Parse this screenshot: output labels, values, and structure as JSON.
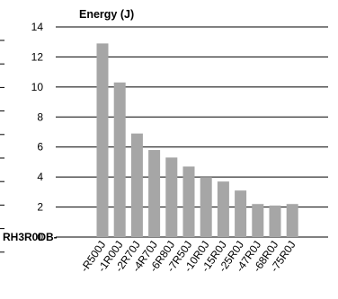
{
  "chart_data": {
    "type": "bar",
    "title": "Energy (J)",
    "category_prefix": "RH3R0DB-",
    "categories": [
      "-R500J",
      "-1R00J",
      "-2R70J",
      "-4R70J",
      "-6R80J",
      "-7R50J",
      "-10R0J",
      "-15R0J",
      "-25R0J",
      "-47R0J",
      "-68R0J",
      "-75R0J"
    ],
    "values": [
      12.9,
      10.3,
      6.9,
      5.8,
      5.3,
      4.7,
      4.0,
      3.7,
      3.1,
      2.2,
      2.1,
      2.2
    ],
    "ylim": [
      0,
      14
    ],
    "yticks": [
      0,
      2,
      4,
      6,
      8,
      10,
      12,
      14
    ],
    "grid": true,
    "bar_color": "#a6a6a6",
    "grid_color": "#000000"
  }
}
